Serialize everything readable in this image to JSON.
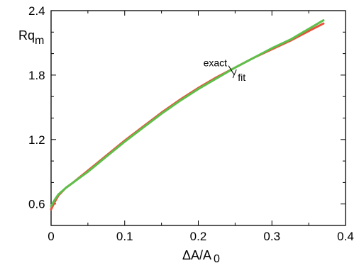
{
  "chart_data": {
    "type": "line",
    "title": "",
    "xlabel_main": "ΔA/A",
    "xlabel_sub": "0",
    "ylabel_main": "Rq",
    "ylabel_sub": "m",
    "xlim": [
      0,
      0.4
    ],
    "ylim": [
      0.4,
      2.4
    ],
    "xticks": [
      0,
      0.1,
      0.2,
      0.3,
      0.4
    ],
    "xtick_labels": [
      "0",
      "0.1",
      "0.2",
      "0.3",
      "0.4"
    ],
    "yticks": [
      0.6,
      1.2,
      1.8,
      2.4
    ],
    "ytick_labels": [
      "0.6",
      "1.2",
      "1.8",
      "2.4"
    ],
    "grid": false,
    "legend": "none",
    "series": [
      {
        "name": "exact",
        "color": "#e8503a",
        "x": [
          0,
          0.005,
          0.01,
          0.02,
          0.03,
          0.05,
          0.075,
          0.1,
          0.125,
          0.15,
          0.175,
          0.2,
          0.225,
          0.25,
          0.275,
          0.3,
          0.325,
          0.35,
          0.37
        ],
        "y": [
          0.55,
          0.62,
          0.68,
          0.75,
          0.8,
          0.91,
          1.05,
          1.19,
          1.32,
          1.45,
          1.57,
          1.68,
          1.78,
          1.87,
          1.96,
          2.04,
          2.12,
          2.21,
          2.28
        ]
      },
      {
        "name": "fit",
        "color": "#5cc04a",
        "x": [
          0,
          0.005,
          0.01,
          0.02,
          0.03,
          0.05,
          0.075,
          0.1,
          0.125,
          0.15,
          0.175,
          0.2,
          0.225,
          0.25,
          0.275,
          0.3,
          0.325,
          0.35,
          0.37
        ],
        "y": [
          0.58,
          0.64,
          0.69,
          0.75,
          0.8,
          0.9,
          1.04,
          1.18,
          1.31,
          1.44,
          1.56,
          1.67,
          1.77,
          1.87,
          1.96,
          2.05,
          2.13,
          2.23,
          2.31
        ]
      }
    ],
    "annotations": [
      {
        "text": "exact",
        "x": 0.242,
        "y": 1.855,
        "anchor": "end"
      },
      {
        "text": "fit",
        "x": 0.246,
        "y": 1.825,
        "anchor": "start"
      }
    ]
  }
}
